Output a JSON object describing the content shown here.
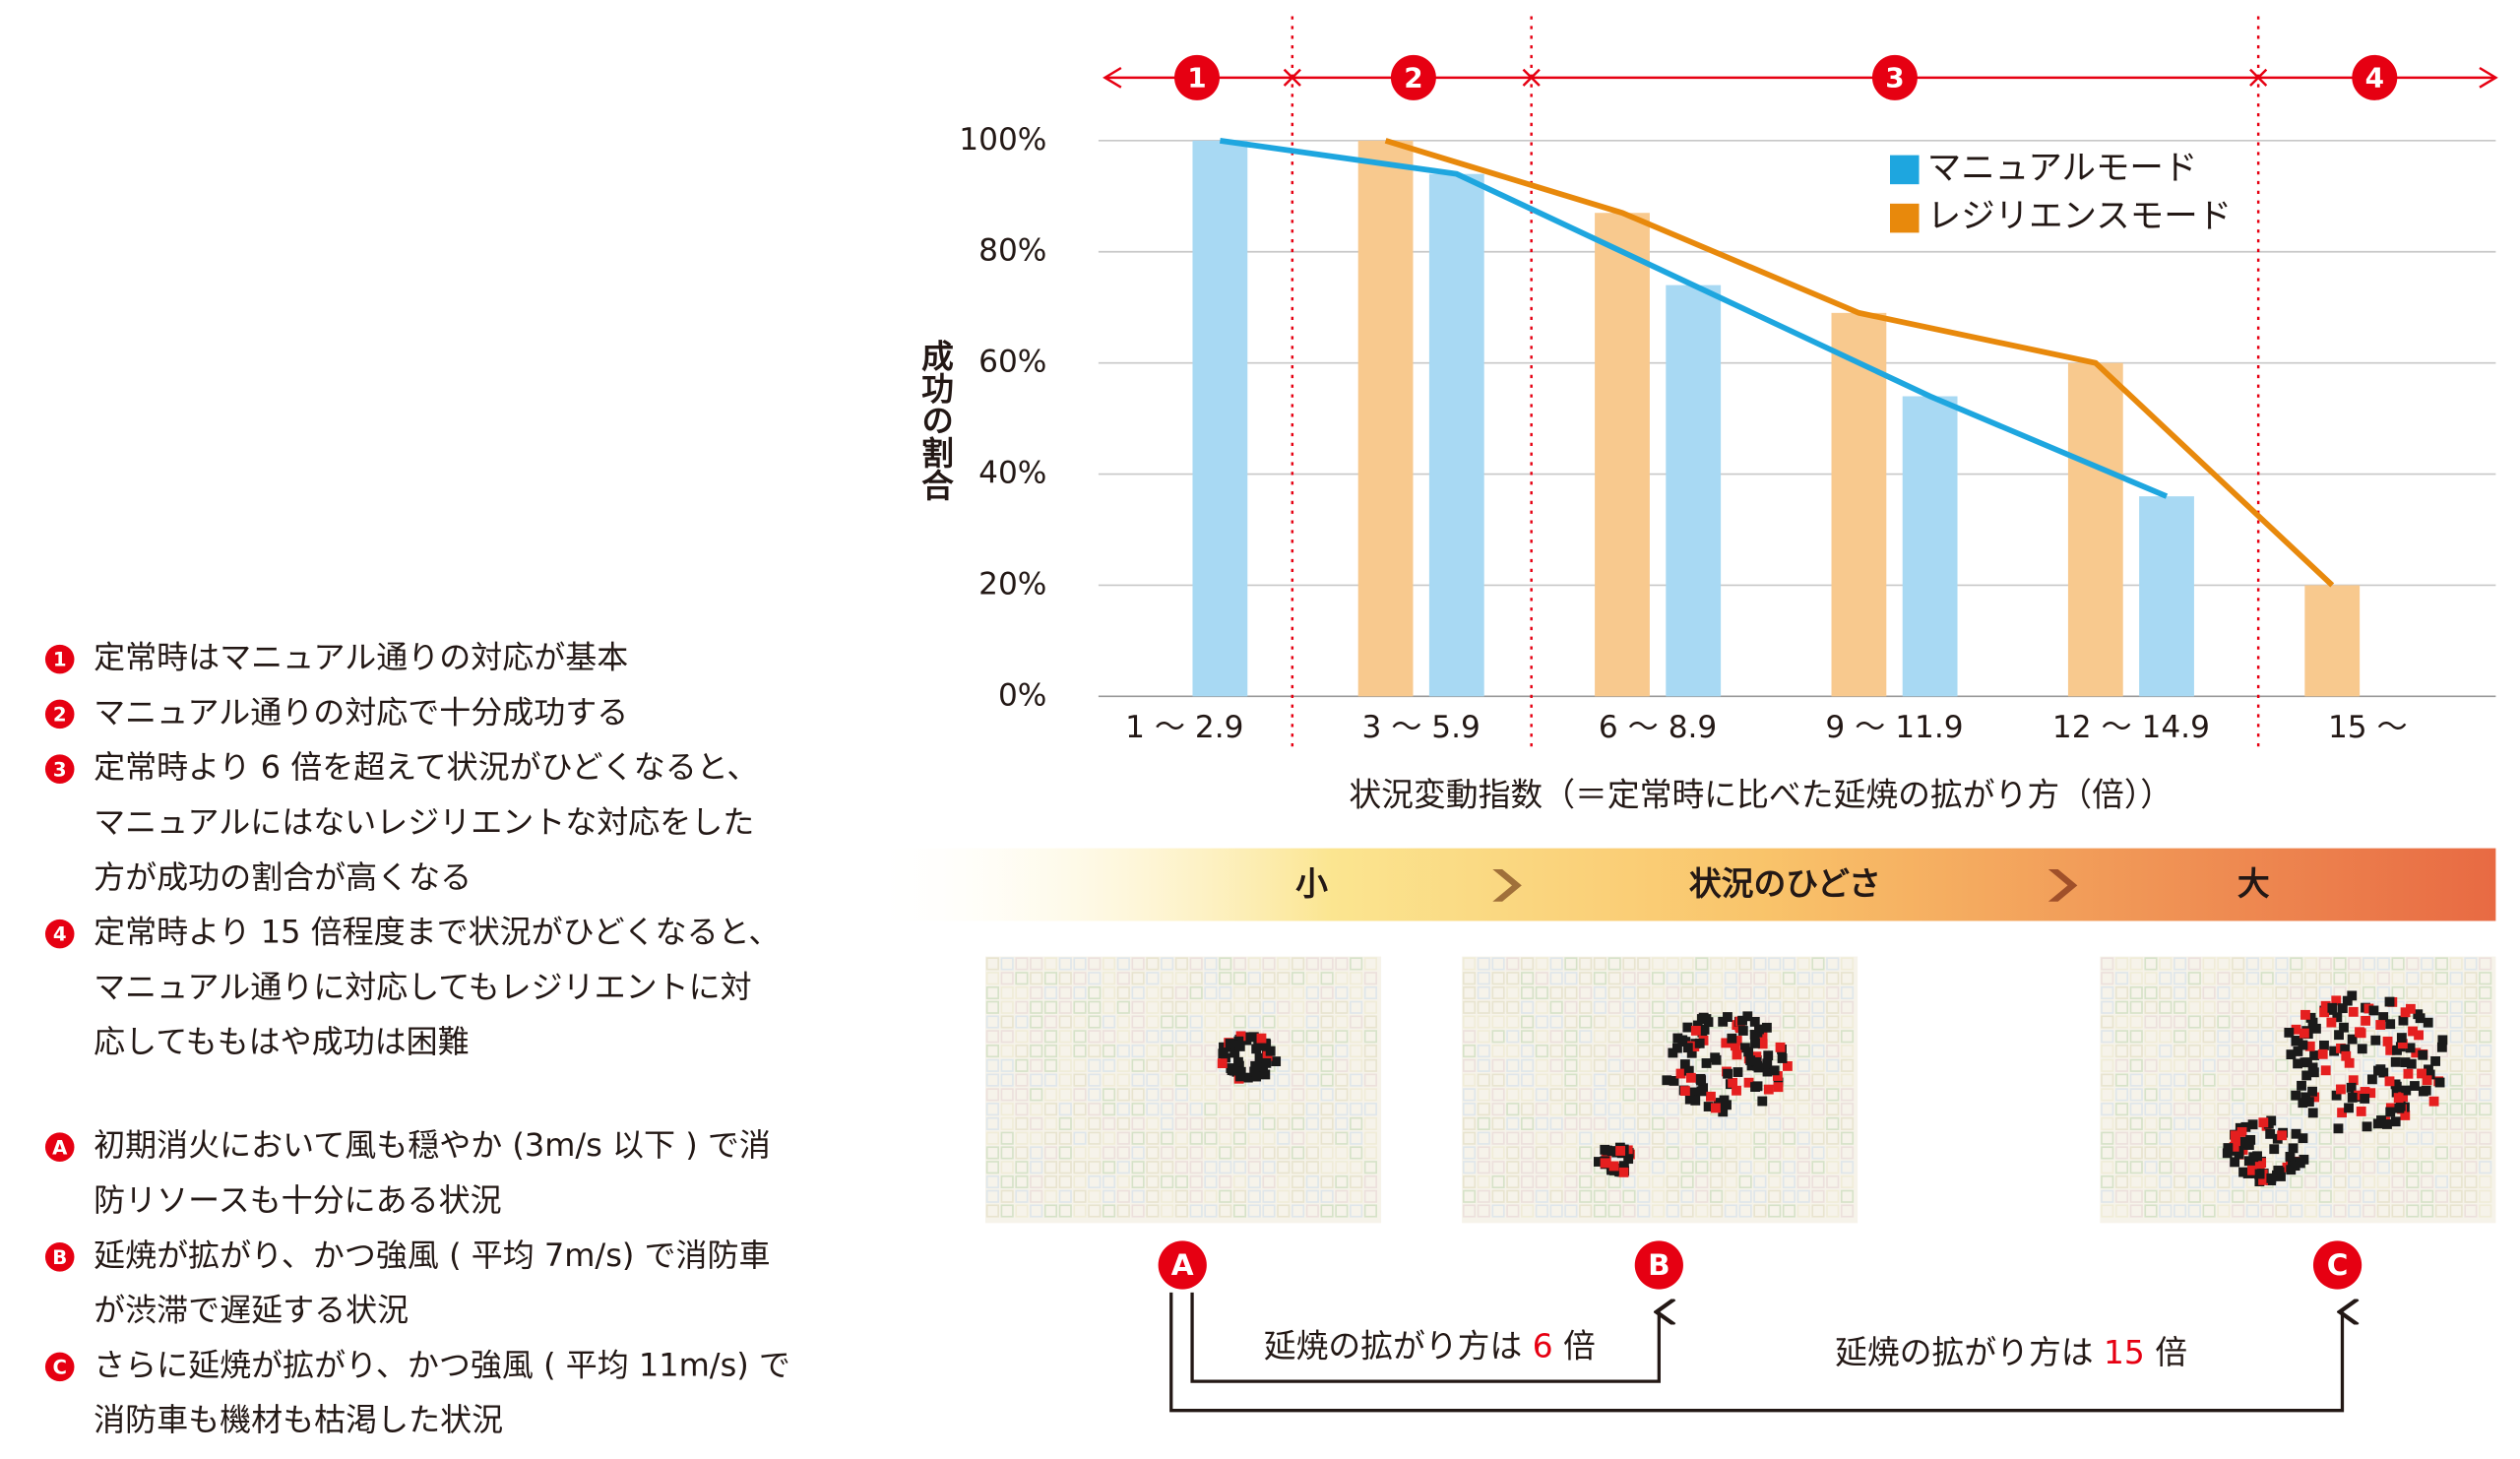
{
  "chart_data": {
    "type": "bar",
    "overlay_line": true,
    "y_label": "成功の割合",
    "x_label": "状況変動指数（＝定常時に比べた延焼の拡がり方（倍））",
    "categories": [
      "1 〜 2.9",
      "3 〜 5.9",
      "6 〜 8.9",
      "9 〜 11.9",
      "12 〜 14.9",
      "15 〜"
    ],
    "series": [
      {
        "name": "マニュアルモード",
        "color": "#1ea6df",
        "bar_color": "#a8d9f3",
        "values": [
          100,
          94,
          74,
          54,
          36,
          null
        ]
      },
      {
        "name": "レジリエンスモード",
        "color": "#e8890c",
        "bar_color": "#f8c98e",
        "values": [
          null,
          100,
          87,
          69,
          60,
          20
        ]
      }
    ],
    "ylim": [
      0,
      100
    ],
    "yticks": [
      {
        "value": 0,
        "label": "0%"
      },
      {
        "value": 20,
        "label": "20%"
      },
      {
        "value": 40,
        "label": "40%"
      },
      {
        "value": 60,
        "label": "60%"
      },
      {
        "value": 80,
        "label": "80%"
      },
      {
        "value": 100,
        "label": "100%"
      }
    ],
    "grid": true,
    "legend": "upper-right",
    "regions": [
      "1",
      "2",
      "3",
      "4"
    ]
  },
  "notes": [
    {
      "marker": "1",
      "lines": [
        "定常時はマニュアル通りの対応が基本"
      ]
    },
    {
      "marker": "2",
      "lines": [
        "マニュアル通りの対応で十分成功する"
      ]
    },
    {
      "marker": "3",
      "lines": [
        "定常時より 6 倍を超えて状況がひどくなると、",
        "マニュアルにはないレジリエントな対応をした",
        "方が成功の割合が高くなる"
      ]
    },
    {
      "marker": "4",
      "lines": [
        "定常時より 15 倍程度まで状況がひどくなると、",
        "マニュアル通りに対応してもレジリエントに対",
        "応してももはや成功は困難"
      ]
    },
    {
      "marker": "A",
      "lines": [
        "初期消火において風も穏やか (3m/s 以下 ) で消",
        "防リソースも十分にある状況"
      ]
    },
    {
      "marker": "B",
      "lines": [
        "延焼が拡がり、かつ強風 ( 平均 7m/s) で消防車",
        "が渋滞で遅延する状況"
      ]
    },
    {
      "marker": "C",
      "lines": [
        "さらに延焼が拡がり、かつ強風 ( 平均 11m/s) で",
        "消防車も機材も枯渇した状況"
      ]
    }
  ],
  "severity": {
    "low": "小",
    "title": "状況のひどさ",
    "high": "大"
  },
  "scenarios": [
    "A",
    "B",
    "C"
  ],
  "comparisons": [
    {
      "text": "延焼の拡がり方は ",
      "factor": "6",
      "unit": " 倍"
    },
    {
      "text": "延焼の拡がり方は ",
      "factor": "15",
      "unit": " 倍"
    }
  ]
}
